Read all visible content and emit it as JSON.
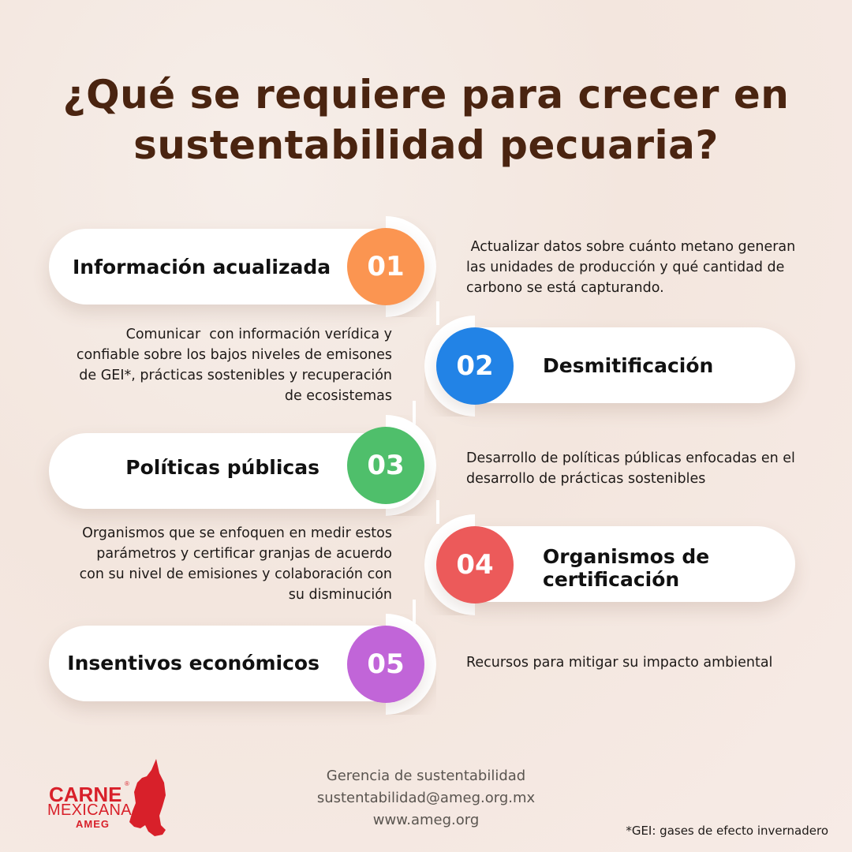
{
  "title": "¿Qué se requiere para crecer en sustentabilidad pecuaria?",
  "steps": [
    {
      "number": "01",
      "label": "Información acualizada",
      "color": "#fb9551",
      "description": " Actualizar datos sobre cuánto metano generan las unidades de producción y qué cantidad de carbono se está capturando."
    },
    {
      "number": "02",
      "label": "Desmitificación",
      "color": "#2283e6",
      "description": "Comunicar  con información verídica y confiable sobre los bajos niveles de emisones de GEI*, prácticas sostenibles y recuperación de ecosistemas"
    },
    {
      "number": "03",
      "label": "Políticas públicas",
      "color": "#4fbf6b",
      "description": "Desarrollo de políticas públicas enfocadas en el desarrollo de prácticas sostenibles"
    },
    {
      "number": "04",
      "label": "Organismos de certificación",
      "color": "#ec5a5a",
      "description": "Organismos que se enfoquen en medir estos parámetros y certificar granjas de acuerdo con su nivel de emisiones y colaboración con su disminución"
    },
    {
      "number": "05",
      "label": "Insentivos económicos",
      "color": "#c165d8",
      "description": "Recursos para mitigar su impacto ambiental"
    }
  ],
  "footer": {
    "line1": "Gerencia de sustentabilidad",
    "email": "sustentabilidad@ameg.org.mx",
    "website": "www.ameg.org"
  },
  "footnote": "*GEI: gases de efecto invernadero",
  "logo": {
    "word1": "CARNE",
    "word2": "MEXICANA",
    "word3": "AMEG",
    "registered": "®",
    "color": "#d8202a"
  }
}
